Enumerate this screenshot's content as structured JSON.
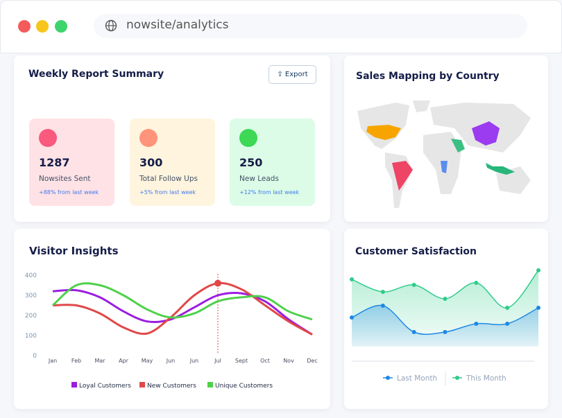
{
  "browser": {
    "url": "nowsite/analytics"
  },
  "report": {
    "title": "Weekly Report Summary",
    "export": "Export",
    "cards": [
      {
        "value": 1287,
        "label": "Nowsites Sent",
        "change": "+88% from last week"
      },
      {
        "value": 300,
        "label": "Total Follow Ups",
        "change": "+5% from  last week"
      },
      {
        "value": 250,
        "label": "New Leads",
        "change": "+12% from  last week"
      }
    ]
  },
  "map": {
    "title": "Sales Mapping by Country"
  },
  "visitor_insights": {
    "title": "Visitor Insights",
    "chart": {
      "type": "line",
      "categories": [
        "Jan",
        "Feb",
        "Mar",
        "Apr",
        "May",
        "Jun",
        "Jun",
        "Jul",
        "Sept",
        "Oct",
        "Nov",
        "Dec"
      ],
      "ylim": [
        0,
        400
      ],
      "yticks": [
        0,
        100,
        200,
        300,
        400
      ],
      "series": [
        {
          "name": "Loyal Customers",
          "color": "#9b1de0",
          "values": [
            320,
            325,
            290,
            220,
            170,
            180,
            240,
            300,
            310,
            270,
            180,
            105
          ]
        },
        {
          "name": "New Customers",
          "color": "#e04848",
          "values": [
            250,
            250,
            210,
            140,
            110,
            190,
            300,
            360,
            330,
            250,
            170,
            105
          ]
        },
        {
          "name": "Unique Customers",
          "color": "#4fd04a",
          "values": [
            250,
            350,
            350,
            300,
            230,
            190,
            210,
            270,
            290,
            290,
            220,
            180
          ]
        }
      ]
    }
  },
  "customer_satisfaction": {
    "title": "Customer Satisfaction",
    "chart": {
      "type": "area",
      "series": [
        {
          "name": "Last Month",
          "color": "#1e88e5",
          "values": [
            42,
            59,
            21,
            21,
            33,
            33,
            56
          ]
        },
        {
          "name": "This Month",
          "color": "#2ecc8a",
          "values": [
            97,
            79,
            89,
            69,
            92,
            56,
            110
          ]
        }
      ]
    }
  }
}
